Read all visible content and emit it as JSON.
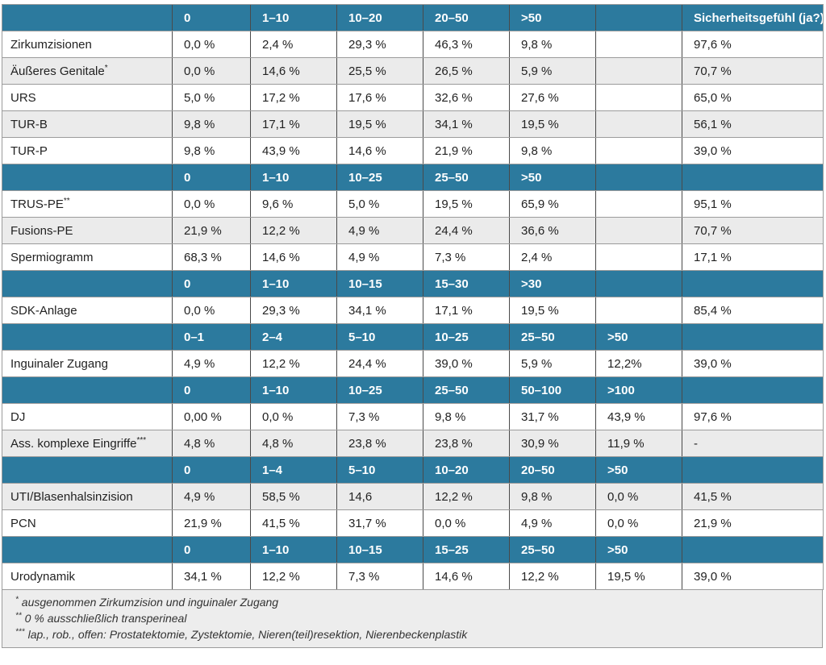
{
  "table": {
    "sicherheit_header": "Sicherheitsgefühl (ja?)",
    "colors": {
      "header_bg": "#2C7A9E",
      "header_text": "#FFFFFF",
      "shaded_row_bg": "#EBEBEB",
      "footnote_bg": "#EDEDED",
      "body_text": "#222222"
    },
    "sections": [
      {
        "ranges": [
          "0",
          "1–10",
          "10–20",
          "20–50",
          ">50",
          ""
        ],
        "show_sicherheit_header": true,
        "rows": [
          {
            "label": "Zirkumzisionen",
            "sup": "",
            "values": [
              "0,0 %",
              "2,4 %",
              "29,3 %",
              "46,3 %",
              "9,8 %",
              ""
            ],
            "sicherheit": "97,6 %",
            "shaded": false
          },
          {
            "label": "Äußeres Genitale",
            "sup": "*",
            "values": [
              "0,0 %",
              "14,6 %",
              "25,5 %",
              "26,5 %",
              "5,9 %",
              ""
            ],
            "sicherheit": "70,7 %",
            "shaded": true
          },
          {
            "label": "URS",
            "sup": "",
            "values": [
              "5,0 %",
              "17,2 %",
              "17,6 %",
              "32,6 %",
              "27,6 %",
              ""
            ],
            "sicherheit": "65,0 %",
            "shaded": false
          },
          {
            "label": "TUR-B",
            "sup": "",
            "values": [
              "9,8 %",
              "17,1 %",
              "19,5 %",
              "34,1 %",
              "19,5 %",
              ""
            ],
            "sicherheit": "56,1 %",
            "shaded": true
          },
          {
            "label": "TUR-P",
            "sup": "",
            "values": [
              "9,8 %",
              "43,9 %",
              "14,6 %",
              "21,9 %",
              "9,8 %",
              ""
            ],
            "sicherheit": "39,0 %",
            "shaded": false
          }
        ]
      },
      {
        "ranges": [
          "0",
          "1–10",
          "10–25",
          "25–50",
          ">50",
          ""
        ],
        "show_sicherheit_header": false,
        "rows": [
          {
            "label": "TRUS-PE",
            "sup": "**",
            "values": [
              "0,0 %",
              "9,6 %",
              "5,0 %",
              "19,5 %",
              "65,9 %",
              ""
            ],
            "sicherheit": "95,1 %",
            "shaded": false
          },
          {
            "label": "Fusions-PE",
            "sup": "",
            "values": [
              "21,9 %",
              "12,2 %",
              "4,9 %",
              "24,4 %",
              "36,6 %",
              ""
            ],
            "sicherheit": "70,7 %",
            "shaded": true
          },
          {
            "label": "Spermiogramm",
            "sup": "",
            "values": [
              "68,3 %",
              "14,6 %",
              "4,9 %",
              "7,3 %",
              "2,4 %",
              ""
            ],
            "sicherheit": "17,1 %",
            "shaded": false
          }
        ]
      },
      {
        "ranges": [
          "0",
          "1–10",
          "10–15",
          "15–30",
          ">30",
          ""
        ],
        "show_sicherheit_header": false,
        "rows": [
          {
            "label": "SDK-Anlage",
            "sup": "",
            "values": [
              "0,0 %",
              "29,3 %",
              "34,1 %",
              "17,1 %",
              "19,5 %",
              ""
            ],
            "sicherheit": "85,4 %",
            "shaded": false
          }
        ]
      },
      {
        "ranges": [
          "0–1",
          "2–4",
          "5–10",
          "10–25",
          "25–50",
          ">50"
        ],
        "show_sicherheit_header": false,
        "rows": [
          {
            "label": "Inguinaler Zugang",
            "sup": "",
            "values": [
              "4,9 %",
              "12,2 %",
              "24,4 %",
              "39,0 %",
              "5,9 %",
              "12,2%"
            ],
            "sicherheit": "39,0 %",
            "shaded": false
          }
        ]
      },
      {
        "ranges": [
          "0",
          "1–10",
          "10–25",
          "25–50",
          "50–100",
          ">100"
        ],
        "show_sicherheit_header": false,
        "rows": [
          {
            "label": "DJ",
            "sup": "",
            "values": [
              "0,00 %",
              "0,0 %",
              "7,3 %",
              "9,8 %",
              "31,7 %",
              "43,9 %"
            ],
            "sicherheit": "97,6 %",
            "shaded": false
          },
          {
            "label": "Ass. komplexe Eingriffe",
            "sup": "***",
            "values": [
              "4,8 %",
              "4,8 %",
              "23,8 %",
              "23,8 %",
              "30,9 %",
              "11,9 %"
            ],
            "sicherheit": "-",
            "shaded": true
          }
        ]
      },
      {
        "ranges": [
          "0",
          "1–4",
          "5–10",
          "10–20",
          "20–50",
          ">50"
        ],
        "show_sicherheit_header": false,
        "rows": [
          {
            "label": "UTI/Blasenhalsinzision",
            "sup": "",
            "values": [
              "4,9 %",
              "58,5 %",
              "14,6",
              "12,2 %",
              "9,8 %",
              "0,0 %"
            ],
            "sicherheit": "41,5 %",
            "shaded": true
          },
          {
            "label": "PCN",
            "sup": "",
            "values": [
              "21,9 %",
              "41,5 %",
              "31,7 %",
              "0,0 %",
              "4,9 %",
              "0,0 %"
            ],
            "sicherheit": "21,9 %",
            "shaded": false
          }
        ]
      },
      {
        "ranges": [
          "0",
          "1–10",
          "10–15",
          "15–25",
          "25–50",
          ">50"
        ],
        "show_sicherheit_header": false,
        "rows": [
          {
            "label": "Urodynamik",
            "sup": "",
            "values": [
              "34,1 %",
              "12,2 %",
              "7,3 %",
              "14,6 %",
              "12,2 %",
              "19,5 %"
            ],
            "sicherheit": "39,0 %",
            "shaded": false
          }
        ]
      }
    ],
    "footnotes": [
      {
        "marker": "*",
        "text": "ausgenommen Zirkumzision und inguinaler Zugang"
      },
      {
        "marker": "**",
        "text": "0 % ausschließlich transperineal"
      },
      {
        "marker": "***",
        "text": "lap., rob., offen: Prostatektomie, Zystektomie, Nieren(teil)resektion, Nierenbeckenplastik"
      }
    ]
  }
}
